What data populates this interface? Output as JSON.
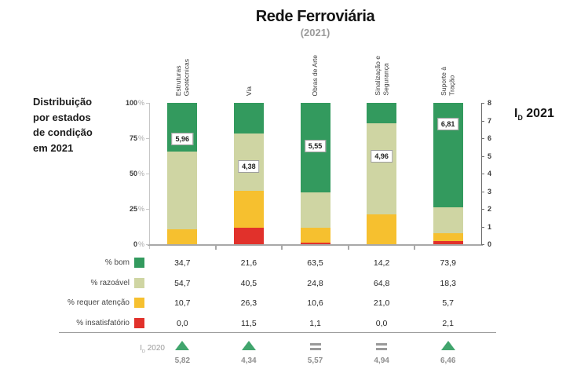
{
  "title": "Rede Ferroviária",
  "subtitle": "(2021)",
  "left_note": "Distribuição\npor estados\nde condição\nem 2021",
  "right_axis_title": {
    "prefix": "I",
    "sub": "D",
    "year": "2021"
  },
  "trend_row_label": {
    "prefix": "I",
    "sub": "D",
    "year": "2020"
  },
  "colors": {
    "bom": "#339a5e",
    "razoavel": "#cfd5a3",
    "requer_atencao": "#f6c02f",
    "insatisfatorio": "#e1312b",
    "trend_up": "#41a56d",
    "trend_equal": "#9a9a9a",
    "axis_gray": "#a8a8a8"
  },
  "chart_data": {
    "type": "bar",
    "stacked": true,
    "title": "Rede Ferroviária",
    "subtitle": "(2021)",
    "categories": [
      "Estruturas\nGeotécnicas",
      "Via",
      "Obras de Arte",
      "Sinalização e\nSegurança",
      "Suporte à\nTração"
    ],
    "series": [
      {
        "name": "% bom",
        "color": "#339a5e",
        "values": [
          34.7,
          21.6,
          63.5,
          14.2,
          73.9
        ]
      },
      {
        "name": "% razoável",
        "color": "#cfd5a3",
        "values": [
          54.7,
          40.5,
          24.8,
          64.8,
          18.3
        ]
      },
      {
        "name": "% requer atenção",
        "color": "#f6c02f",
        "values": [
          10.7,
          26.3,
          10.6,
          21.0,
          5.7
        ]
      },
      {
        "name": "% insatisfatório",
        "color": "#e1312b",
        "values": [
          0.0,
          11.5,
          1.1,
          0.0,
          2.1
        ]
      }
    ],
    "id_2021": [
      5.96,
      4.38,
      5.55,
      4.96,
      6.81
    ],
    "trend_2020": {
      "values": [
        5.82,
        4.34,
        5.57,
        4.94,
        6.46
      ],
      "symbols": [
        "up",
        "up",
        "equal",
        "equal",
        "up"
      ]
    },
    "axes": {
      "left_label": "Distribuição por estados de condição em 2021",
      "left_ticks": [
        0,
        25,
        50,
        75,
        100
      ],
      "left_unit": "%",
      "left_range": [
        0,
        100
      ],
      "right_label": "ID 2021",
      "right_ticks": [
        0,
        1,
        2,
        3,
        4,
        5,
        6,
        7,
        8
      ],
      "right_range": [
        0,
        8
      ],
      "grid": false,
      "legend_position": "table-left"
    }
  }
}
